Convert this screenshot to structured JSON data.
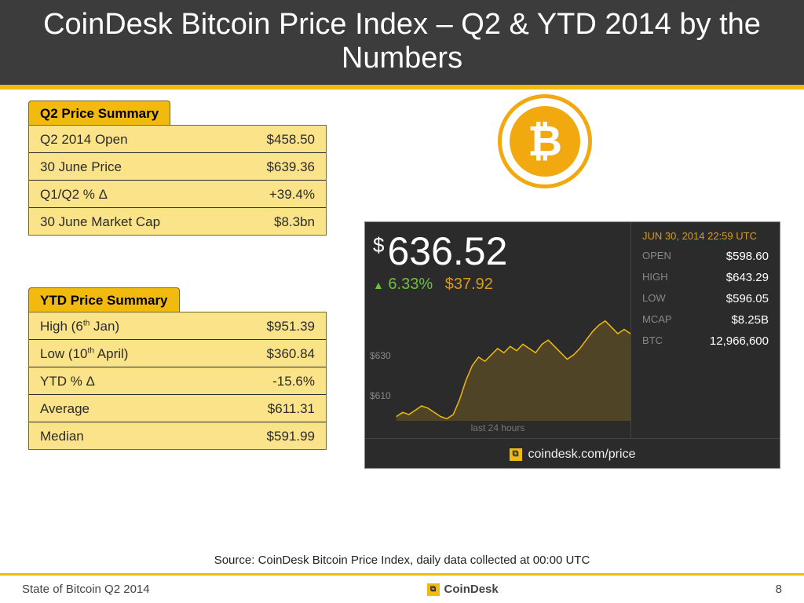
{
  "title": "CoinDesk Bitcoin Price Index – Q2 & YTD 2014 by the Numbers",
  "colors": {
    "header_bg": "#3c3c3c",
    "accent": "#f2b90f",
    "table_bg": "#fbe38a",
    "widget_bg": "#2b2b2b",
    "green": "#6fbf3f",
    "orange_text": "#d99a1f",
    "chart_line": "#f2b90f"
  },
  "q2_table": {
    "header": "Q2 Price Summary",
    "rows": [
      {
        "label": "Q2 2014 Open",
        "value": "$458.50"
      },
      {
        "label": "30 June Price",
        "value": "$639.36"
      },
      {
        "label": "Q1/Q2 % Δ",
        "value": "+39.4%"
      },
      {
        "label": "30 June Market Cap",
        "value": "$8.3bn"
      }
    ]
  },
  "ytd_table": {
    "header": "YTD Price Summary",
    "rows": [
      {
        "label_html": "High (6<sup>th</sup> Jan)",
        "value": "$951.39"
      },
      {
        "label_html": "Low (10<sup>th</sup> April)",
        "value": "$360.84"
      },
      {
        "label_html": "YTD % Δ",
        "value": "-15.6%"
      },
      {
        "label_html": "Average",
        "value": "$611.31"
      },
      {
        "label_html": "Median",
        "value": "$591.99"
      }
    ]
  },
  "btc_logo": {
    "glyph": "₿"
  },
  "widget": {
    "price": "636.52",
    "currency_symbol": "$",
    "change_pct": "6.33%",
    "change_abs": "$37.92",
    "change_direction": "up",
    "date": "JUN 30, 2014 22:59 UTC",
    "stats": [
      {
        "k": "OPEN",
        "v": "$598.60"
      },
      {
        "k": "HIGH",
        "v": "$643.29"
      },
      {
        "k": "LOW",
        "v": "$596.05"
      },
      {
        "k": "MCAP",
        "v": "$8.25B"
      },
      {
        "k": "BTC",
        "v": "12,966,600"
      }
    ],
    "footer": "coindesk.com/price",
    "sparkline": {
      "ylabels": [
        {
          "text": "$630",
          "y_pct": 30
        },
        {
          "text": "$610",
          "y_pct": 62
        }
      ],
      "caption": "last 24 hours",
      "range_y": [
        596,
        644
      ],
      "points": [
        598,
        600,
        599,
        601,
        603,
        602,
        600,
        598,
        597,
        599,
        606,
        615,
        622,
        626,
        624,
        627,
        630,
        628,
        631,
        629,
        632,
        630,
        628,
        632,
        634,
        631,
        628,
        625,
        627,
        630,
        634,
        638,
        641,
        643,
        640,
        637,
        639,
        637
      ]
    }
  },
  "source": "Source: CoinDesk Bitcoin Price Index, daily data collected at 00:00 UTC",
  "footer": {
    "left": "State of Bitcoin Q2 2014",
    "brand": "CoinDesk",
    "page": "8"
  }
}
